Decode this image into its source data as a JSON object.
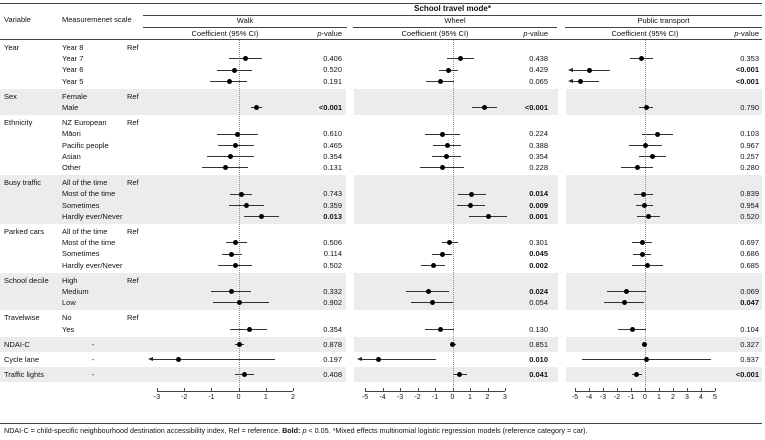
{
  "chart_data": {
    "type": "forest",
    "title": "School travel mode*",
    "columns": {
      "variable": "Variable",
      "scale": "Measuremenet scale",
      "coef": "Coefficient (95% CI)",
      "p_header": {
        "italic": "p",
        "rest": "-value"
      }
    },
    "ref_label": "Ref",
    "panels": [
      {
        "key": "walk",
        "label": "Walk",
        "xlim": [
          -3,
          2
        ],
        "ticks": [
          -3,
          -2,
          -1,
          0,
          1,
          2
        ]
      },
      {
        "key": "wheel",
        "label": "Wheel",
        "xlim": [
          -5,
          3
        ],
        "ticks": [
          -5,
          -4,
          -3,
          -2,
          -1,
          0,
          1,
          2,
          3
        ]
      },
      {
        "key": "pt",
        "label": "Public transport",
        "xlim": [
          -5,
          5
        ],
        "ticks": [
          -5,
          -4,
          -3,
          -2,
          -1,
          0,
          1,
          2,
          3,
          4,
          5
        ]
      }
    ],
    "groups": [
      {
        "variable": "Year",
        "shaded": false,
        "rows": [
          {
            "scale": "Year 8",
            "ref": true
          },
          {
            "scale": "Year 7",
            "walk": {
              "coef": 0.25,
              "lo": -0.35,
              "hi": 0.85,
              "p": "0.406"
            },
            "wheel": {
              "coef": 0.45,
              "lo": -0.3,
              "hi": 1.2,
              "p": "0.438"
            },
            "pt": {
              "coef": -0.25,
              "lo": -1.05,
              "hi": 0.55,
              "p": "0.353"
            }
          },
          {
            "scale": "Year 6",
            "walk": {
              "coef": -0.15,
              "lo": -0.8,
              "hi": 0.5,
              "p": "0.520"
            },
            "wheel": {
              "coef": -0.25,
              "lo": -0.8,
              "hi": 0.3,
              "p": "0.429"
            },
            "pt": {
              "coef": -4.0,
              "lo": -5.15,
              "hi": -2.5,
              "p": "<0.001",
              "bold": true,
              "arrow_lo": true
            }
          },
          {
            "scale": "Year 5",
            "walk": {
              "coef": -0.35,
              "lo": -1.05,
              "hi": 0.3,
              "p": "0.191"
            },
            "wheel": {
              "coef": -0.7,
              "lo": -1.5,
              "hi": 0.1,
              "p": "0.065"
            },
            "pt": {
              "coef": -4.6,
              "lo": -5.15,
              "hi": -3.3,
              "p": "<0.001",
              "bold": true,
              "arrow_lo": true
            }
          }
        ]
      },
      {
        "variable": "Sex",
        "shaded": true,
        "rows": [
          {
            "scale": "Female",
            "ref": true
          },
          {
            "scale": "Male",
            "walk": {
              "coef": 0.65,
              "lo": 0.45,
              "hi": 0.85,
              "p": "<0.001",
              "bold": true
            },
            "wheel": {
              "coef": 1.85,
              "lo": 1.1,
              "hi": 2.55,
              "p": "<0.001",
              "bold": true
            },
            "pt": {
              "coef": 0.08,
              "lo": -0.45,
              "hi": 0.6,
              "p": "0.790"
            }
          }
        ]
      },
      {
        "variable": "Ethnicity",
        "shaded": false,
        "rows": [
          {
            "scale": "NZ European",
            "ref": true
          },
          {
            "scale": "Māori",
            "walk": {
              "coef": -0.05,
              "lo": -0.8,
              "hi": 0.7,
              "p": "0.610"
            },
            "wheel": {
              "coef": -0.6,
              "lo": -1.6,
              "hi": 0.4,
              "p": "0.224"
            },
            "pt": {
              "coef": 0.9,
              "lo": -0.2,
              "hi": 2.0,
              "p": "0.103"
            }
          },
          {
            "scale": "Pacific people",
            "walk": {
              "coef": -0.1,
              "lo": -0.75,
              "hi": 0.55,
              "p": "0.465"
            },
            "wheel": {
              "coef": -0.3,
              "lo": -1.1,
              "hi": 0.5,
              "p": "0.388"
            },
            "pt": {
              "coef": 0.05,
              "lo": -1.15,
              "hi": 1.2,
              "p": "0.967"
            }
          },
          {
            "scale": "Asian",
            "walk": {
              "coef": -0.3,
              "lo": -1.15,
              "hi": 0.55,
              "p": "0.354"
            },
            "wheel": {
              "coef": -0.35,
              "lo": -1.2,
              "hi": 0.5,
              "p": "0.354"
            },
            "pt": {
              "coef": 0.55,
              "lo": -0.4,
              "hi": 1.5,
              "p": "0.257"
            }
          },
          {
            "scale": "Other",
            "walk": {
              "coef": -0.5,
              "lo": -1.35,
              "hi": 0.35,
              "p": "0.131"
            },
            "wheel": {
              "coef": -0.6,
              "lo": -1.85,
              "hi": 0.65,
              "p": "0.228"
            },
            "pt": {
              "coef": -0.55,
              "lo": -1.7,
              "hi": 0.6,
              "p": "0.280"
            }
          }
        ]
      },
      {
        "variable": "Busy traffic",
        "shaded": true,
        "rows": [
          {
            "scale": "All of the time",
            "ref": true
          },
          {
            "scale": "Most of the time",
            "walk": {
              "coef": 0.1,
              "lo": -0.3,
              "hi": 0.5,
              "p": "0.743"
            },
            "wheel": {
              "coef": 1.1,
              "lo": 0.3,
              "hi": 1.9,
              "p": "0.014",
              "bold": true
            },
            "pt": {
              "coef": -0.08,
              "lo": -0.8,
              "hi": 0.6,
              "p": "0.839"
            }
          },
          {
            "scale": "Sometimes",
            "walk": {
              "coef": 0.3,
              "lo": -0.35,
              "hi": 0.95,
              "p": "0.359"
            },
            "wheel": {
              "coef": 1.05,
              "lo": 0.25,
              "hi": 1.85,
              "p": "0.009",
              "bold": true
            },
            "pt": {
              "coef": -0.02,
              "lo": -0.65,
              "hi": 0.6,
              "p": "0.954"
            }
          },
          {
            "scale": "Hardly ever/Never",
            "walk": {
              "coef": 0.85,
              "lo": 0.2,
              "hi": 1.5,
              "p": "0.013",
              "bold": true
            },
            "wheel": {
              "coef": 2.05,
              "lo": 0.95,
              "hi": 3.1,
              "p": "0.001",
              "bold": true
            },
            "pt": {
              "coef": 0.25,
              "lo": -0.6,
              "hi": 1.1,
              "p": "0.520"
            }
          }
        ]
      },
      {
        "variable": "Parked cars",
        "shaded": false,
        "rows": [
          {
            "scale": "All of the time",
            "ref": true
          },
          {
            "scale": "Most of the time",
            "walk": {
              "coef": -0.1,
              "lo": -0.45,
              "hi": 0.3,
              "p": "0.506"
            },
            "wheel": {
              "coef": -0.15,
              "lo": -0.62,
              "hi": 0.32,
              "p": "0.301"
            },
            "pt": {
              "coef": -0.2,
              "lo": -0.9,
              "hi": 0.5,
              "p": "0.697"
            }
          },
          {
            "scale": "Sometimes",
            "walk": {
              "coef": -0.25,
              "lo": -0.62,
              "hi": 0.12,
              "p": "0.114"
            },
            "wheel": {
              "coef": -0.6,
              "lo": -1.18,
              "hi": -0.02,
              "p": "0.045",
              "bold": true
            },
            "pt": {
              "coef": -0.18,
              "lo": -0.85,
              "hi": 0.45,
              "p": "0.686"
            }
          },
          {
            "scale": "Hardly ever/Never",
            "walk": {
              "coef": -0.1,
              "lo": -0.75,
              "hi": 0.5,
              "p": "0.502"
            },
            "wheel": {
              "coef": -1.1,
              "lo": -1.8,
              "hi": -0.42,
              "p": "0.002",
              "bold": true
            },
            "pt": {
              "coef": 0.15,
              "lo": -0.95,
              "hi": 1.3,
              "p": "0.685"
            }
          }
        ]
      },
      {
        "variable": "School decile",
        "shaded": true,
        "rows": [
          {
            "scale": "High",
            "ref": true
          },
          {
            "scale": "Medium",
            "walk": {
              "coef": -0.25,
              "lo": -1.0,
              "hi": 0.45,
              "p": "0.332"
            },
            "wheel": {
              "coef": -1.35,
              "lo": -2.65,
              "hi": -0.18,
              "p": "0.024",
              "bold": true
            },
            "pt": {
              "coef": -1.3,
              "lo": -2.7,
              "hi": 0.05,
              "p": "0.069"
            }
          },
          {
            "scale": "Low",
            "walk": {
              "coef": 0.05,
              "lo": -0.95,
              "hi": 1.1,
              "p": "0.902"
            },
            "wheel": {
              "coef": -1.15,
              "lo": -2.4,
              "hi": 0.02,
              "p": "0.054"
            },
            "pt": {
              "coef": -1.5,
              "lo": -2.95,
              "hi": -0.05,
              "p": "0.047",
              "bold": true
            }
          }
        ]
      },
      {
        "variable": "Travelwise",
        "shaded": false,
        "rows": [
          {
            "scale": "No",
            "ref": true
          },
          {
            "scale": "Yes",
            "walk": {
              "coef": 0.4,
              "lo": -0.3,
              "hi": 1.05,
              "p": "0.354"
            },
            "wheel": {
              "coef": -0.7,
              "lo": -1.6,
              "hi": 0.1,
              "p": "0.130"
            },
            "pt": {
              "coef": -0.9,
              "lo": -1.9,
              "hi": 0.05,
              "p": "0.104"
            }
          }
        ]
      },
      {
        "variable": "NDAI-C",
        "shaded": true,
        "rows": [
          {
            "scale": "-",
            "walk": {
              "coef": 0.02,
              "lo": -0.15,
              "hi": 0.19,
              "p": "0.878"
            },
            "wheel": {
              "coef": 0.02,
              "lo": -0.16,
              "hi": 0.2,
              "p": "0.851"
            },
            "pt": {
              "coef": -0.07,
              "lo": -0.22,
              "hi": 0.08,
              "p": "0.327"
            }
          }
        ]
      },
      {
        "variable": "Cycle lane",
        "shaded": false,
        "rows": [
          {
            "scale": "-",
            "walk": {
              "coef": -2.2,
              "lo": -3.15,
              "hi": 1.35,
              "p": "0.197",
              "arrow_lo": true
            },
            "wheel": {
              "coef": -4.25,
              "lo": -5.15,
              "hi": -0.95,
              "p": "0.010",
              "bold": true,
              "arrow_lo": true
            },
            "pt": {
              "coef": 0.1,
              "lo": -4.5,
              "hi": 4.7,
              "p": "0.937"
            }
          }
        ]
      },
      {
        "variable": "Traffic lights",
        "shaded": true,
        "rows": [
          {
            "scale": "-",
            "walk": {
              "coef": 0.2,
              "lo": -0.15,
              "hi": 0.55,
              "p": "0.408"
            },
            "wheel": {
              "coef": 0.42,
              "lo": 0.02,
              "hi": 0.82,
              "p": "0.041",
              "bold": true
            },
            "pt": {
              "coef": -0.58,
              "lo": -0.95,
              "hi": -0.22,
              "p": "<0.001",
              "bold": true
            }
          }
        ]
      }
    ],
    "footnote_parts": [
      {
        "text": "NDAI-C = child-specific neighbourhood destination accessibility index, Ref = reference. "
      },
      {
        "text": "Bold:",
        "bold": true
      },
      {
        "text": " "
      },
      {
        "text": "p",
        "italic": true
      },
      {
        "text": " < 0.05. *Mixed effects multinomial logistic regression models (reference category = car)."
      }
    ]
  }
}
